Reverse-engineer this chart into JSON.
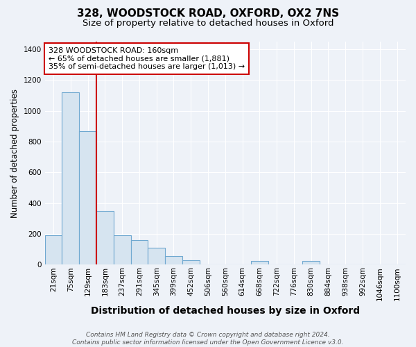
{
  "title1": "328, WOODSTOCK ROAD, OXFORD, OX2 7NS",
  "title2": "Size of property relative to detached houses in Oxford",
  "xlabel": "Distribution of detached houses by size in Oxford",
  "ylabel": "Number of detached properties",
  "categories": [
    "21sqm",
    "75sqm",
    "129sqm",
    "183sqm",
    "237sqm",
    "291sqm",
    "345sqm",
    "399sqm",
    "452sqm",
    "506sqm",
    "560sqm",
    "614sqm",
    "668sqm",
    "722sqm",
    "776sqm",
    "830sqm",
    "884sqm",
    "938sqm",
    "992sqm",
    "1046sqm",
    "1100sqm"
  ],
  "values": [
    190,
    1120,
    870,
    350,
    190,
    160,
    110,
    55,
    30,
    0,
    0,
    0,
    25,
    0,
    0,
    25,
    0,
    0,
    0,
    0,
    0
  ],
  "bar_color": "#d6e4f0",
  "bar_edge_color": "#6fa8d0",
  "redline_x": 2.5,
  "annotation_box_text": "328 WOODSTOCK ROAD: 160sqm\n← 65% of detached houses are smaller (1,881)\n35% of semi-detached houses are larger (1,013) →",
  "footer": "Contains HM Land Registry data © Crown copyright and database right 2024.\nContains public sector information licensed under the Open Government Licence v3.0.",
  "ylim": [
    0,
    1450
  ],
  "background_color": "#eef2f8",
  "grid_color": "#ffffff",
  "title1_fontsize": 11,
  "title2_fontsize": 9.5,
  "xlabel_fontsize": 10,
  "ylabel_fontsize": 8.5,
  "tick_fontsize": 7.5,
  "annotation_fontsize": 8
}
